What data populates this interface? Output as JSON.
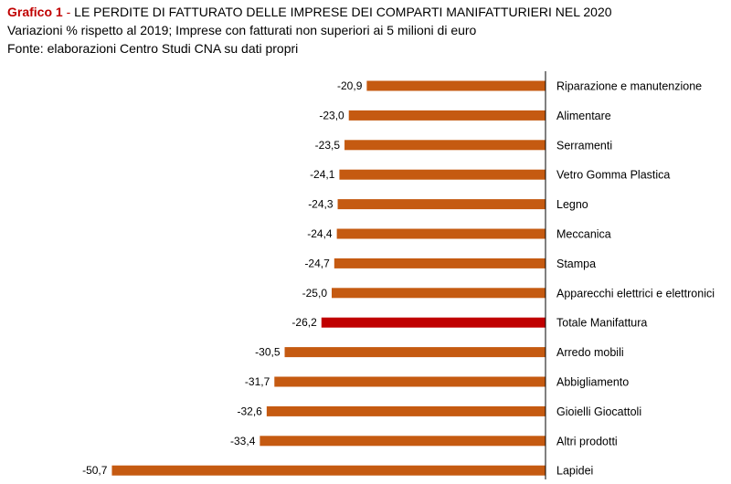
{
  "header": {
    "title_prefix": "Grafico 1",
    "title_sep": " - ",
    "title": "LE PERDITE DI FATTURATO DELLE IMPRESE DEI COMPARTI MANIFATTURIERI NEL 2020",
    "subtitle": "Variazioni % rispetto al 2019; Imprese con fatturati non superiori ai 5 milioni di euro",
    "source": "Fonte: elaborazioni Centro Studi CNA su dati propri"
  },
  "colors": {
    "bar": "#c55a11",
    "highlight": "#c00000",
    "title_accent": "#c00000",
    "axis": "#000000"
  },
  "chart_data": {
    "type": "bar",
    "orientation": "horizontal",
    "categories": [
      "Riparazione e manutenzione",
      "Alimentare",
      "Serramenti",
      "Vetro Gomma Plastica",
      "Legno",
      "Meccanica",
      "Stampa",
      "Apparecchi elettrici e elettronici",
      "Totale Manifattura",
      "Arredo mobili",
      "Abbigliamento",
      "Gioielli Giocattoli",
      "Altri prodotti",
      "Lapidei"
    ],
    "values": [
      -20.9,
      -23.0,
      -23.5,
      -24.1,
      -24.3,
      -24.4,
      -24.7,
      -25.0,
      -26.2,
      -30.5,
      -31.7,
      -32.6,
      -33.4,
      -50.7
    ],
    "value_labels": [
      "-20,9",
      "-23,0",
      "-23,5",
      "-24,1",
      "-24,3",
      "-24,4",
      "-24,7",
      "-25,0",
      "-26,2",
      "-30,5",
      "-31,7",
      "-32,6",
      "-33,4",
      "-50,7"
    ],
    "highlight_category": "Totale Manifattura",
    "grid": false,
    "legend": "none"
  }
}
